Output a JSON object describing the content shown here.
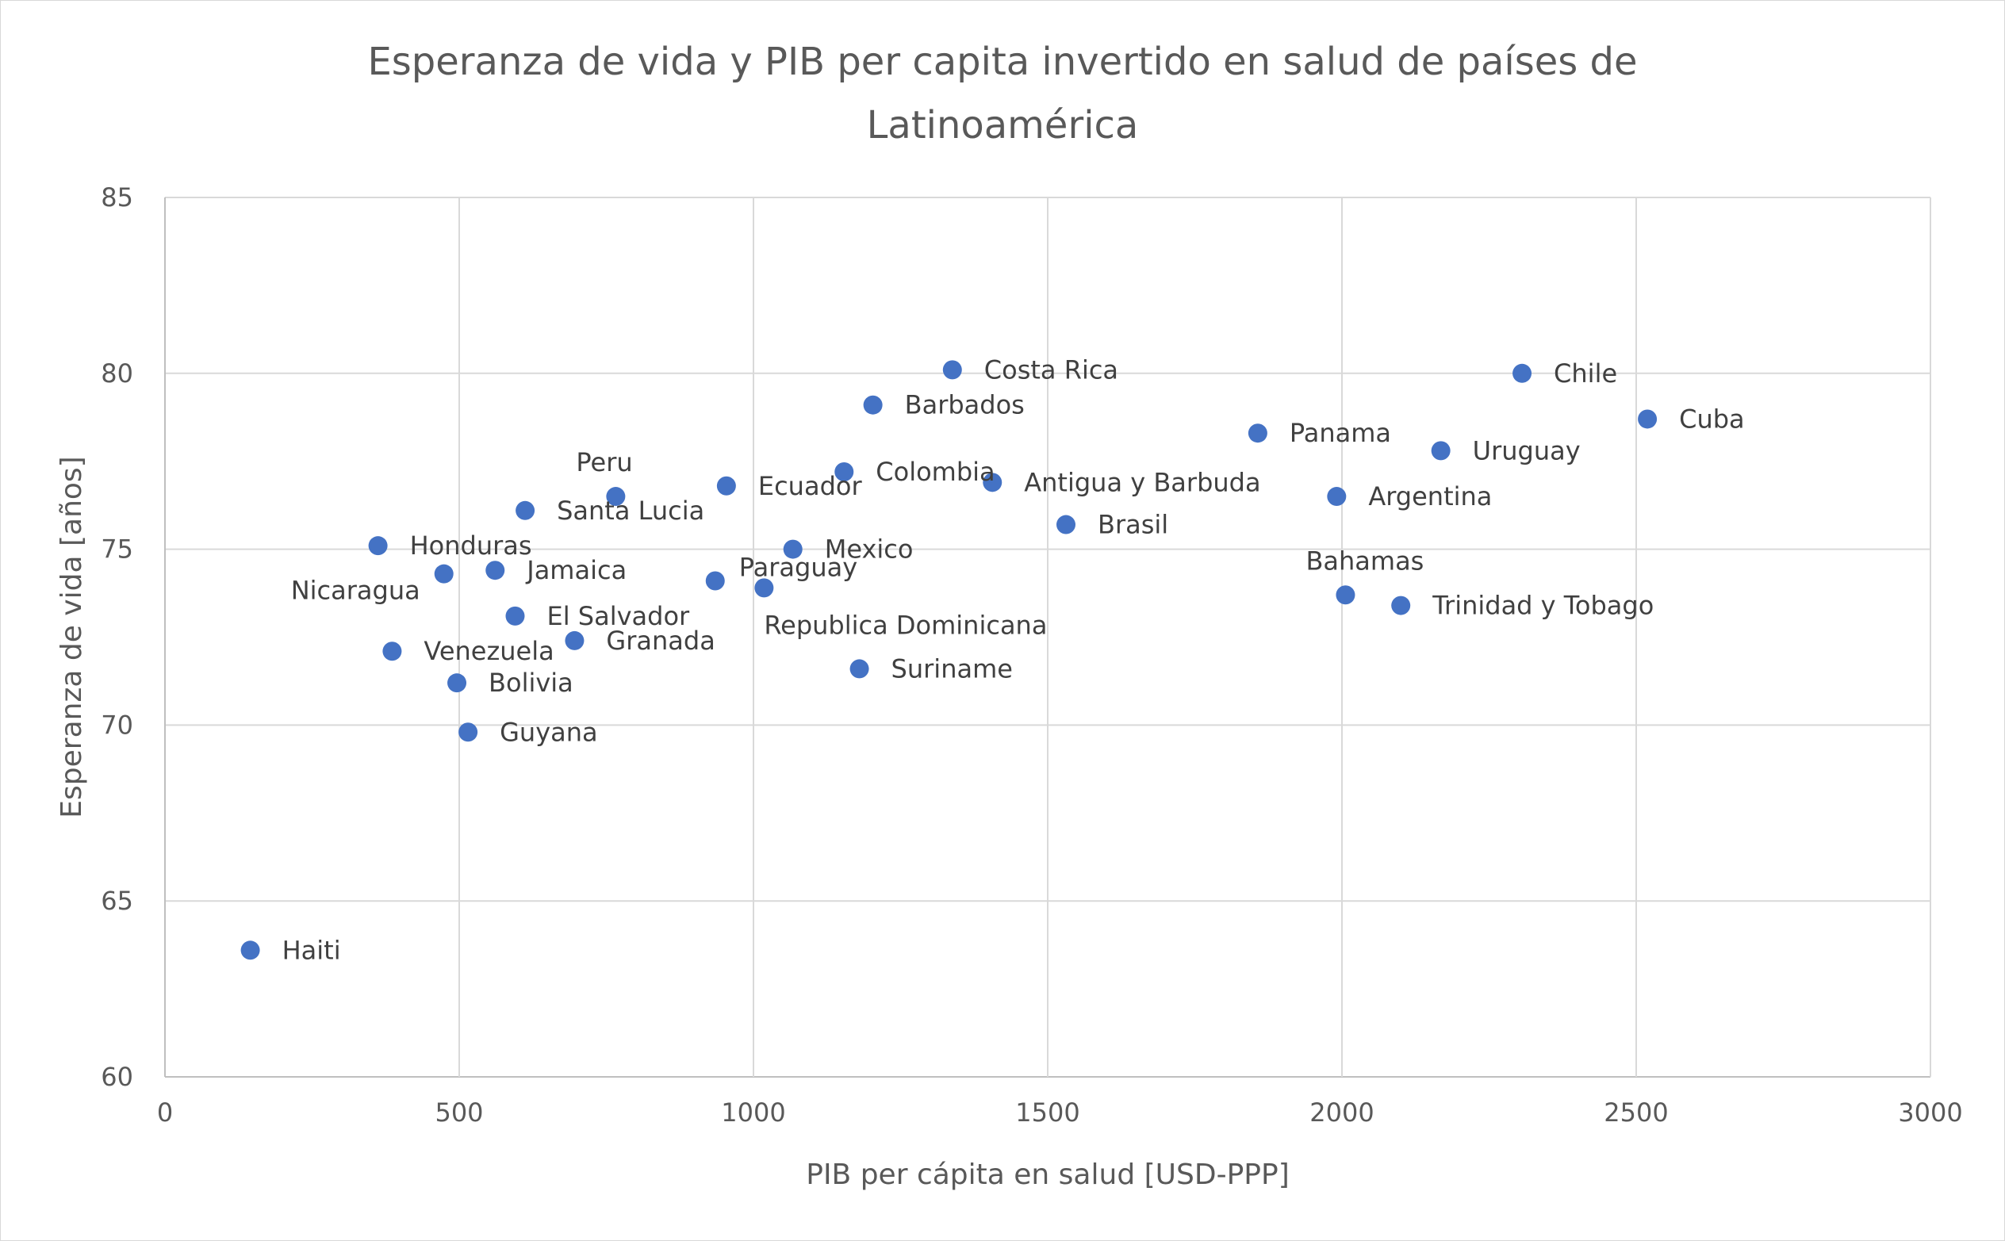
{
  "chart_data": {
    "type": "scatter",
    "title": "Esperanza de vida y PIB per capita invertido en salud de países de Latinoamérica",
    "title_lines": [
      "Esperanza de vida y PIB per capita invertido en salud de países de",
      "Latinoamérica"
    ],
    "xlabel": "PIB per cápita en salud [USD-PPP]",
    "ylabel": "Esperanza de vida [años]",
    "xlim": [
      0,
      3000
    ],
    "ylim": [
      60,
      85
    ],
    "xticks": [
      0,
      500,
      1000,
      1500,
      2000,
      2500,
      3000
    ],
    "yticks": [
      60,
      65,
      70,
      75,
      80,
      85
    ],
    "grid": true,
    "marker_color": "#4472C4",
    "points": [
      {
        "label": "Haiti",
        "x": 145,
        "y": 63.6,
        "anchor": "right"
      },
      {
        "label": "Honduras",
        "x": 362,
        "y": 75.1,
        "anchor": "right"
      },
      {
        "label": "Venezuela",
        "x": 386,
        "y": 72.1,
        "anchor": "right"
      },
      {
        "label": "Nicaragua",
        "x": 474,
        "y": 74.3,
        "anchor": "left-below"
      },
      {
        "label": "Bolivia",
        "x": 496,
        "y": 71.2,
        "anchor": "right"
      },
      {
        "label": "Guyana",
        "x": 515,
        "y": 69.8,
        "anchor": "right"
      },
      {
        "label": "Jamaica",
        "x": 561,
        "y": 74.4,
        "anchor": "right"
      },
      {
        "label": "El Salvador",
        "x": 595,
        "y": 73.1,
        "anchor": "right"
      },
      {
        "label": "Santa Lucia",
        "x": 612,
        "y": 76.1,
        "anchor": "right"
      },
      {
        "label": "Granada",
        "x": 696,
        "y": 72.4,
        "anchor": "right"
      },
      {
        "label": "Peru",
        "x": 766,
        "y": 76.5,
        "anchor": "above"
      },
      {
        "label": "Paraguay",
        "x": 935,
        "y": 74.1,
        "anchor": "right-up"
      },
      {
        "label": "Ecuador",
        "x": 954,
        "y": 76.8,
        "anchor": "right"
      },
      {
        "label": "Republica Dominicana",
        "x": 1018,
        "y": 73.9,
        "anchor": "below"
      },
      {
        "label": "Mexico",
        "x": 1067,
        "y": 75.0,
        "anchor": "right"
      },
      {
        "label": "Colombia",
        "x": 1154,
        "y": 77.2,
        "anchor": "right"
      },
      {
        "label": "Suriname",
        "x": 1180,
        "y": 71.6,
        "anchor": "right"
      },
      {
        "label": "Barbados",
        "x": 1203,
        "y": 79.1,
        "anchor": "right"
      },
      {
        "label": "Costa Rica",
        "x": 1338,
        "y": 80.1,
        "anchor": "right"
      },
      {
        "label": "Antigua y Barbuda",
        "x": 1406,
        "y": 76.9,
        "anchor": "right"
      },
      {
        "label": "Brasil",
        "x": 1531,
        "y": 75.7,
        "anchor": "right"
      },
      {
        "label": "Panama",
        "x": 1857,
        "y": 78.3,
        "anchor": "right"
      },
      {
        "label": "Argentina",
        "x": 1991,
        "y": 76.5,
        "anchor": "right"
      },
      {
        "label": "Bahamas",
        "x": 2006,
        "y": 73.7,
        "anchor": "above"
      },
      {
        "label": "Trinidad y Tobago",
        "x": 2100,
        "y": 73.4,
        "anchor": "right"
      },
      {
        "label": "Uruguay",
        "x": 2168,
        "y": 77.8,
        "anchor": "right"
      },
      {
        "label": "Chile",
        "x": 2306,
        "y": 80.0,
        "anchor": "right"
      },
      {
        "label": "Cuba",
        "x": 2519,
        "y": 78.7,
        "anchor": "right"
      }
    ]
  }
}
